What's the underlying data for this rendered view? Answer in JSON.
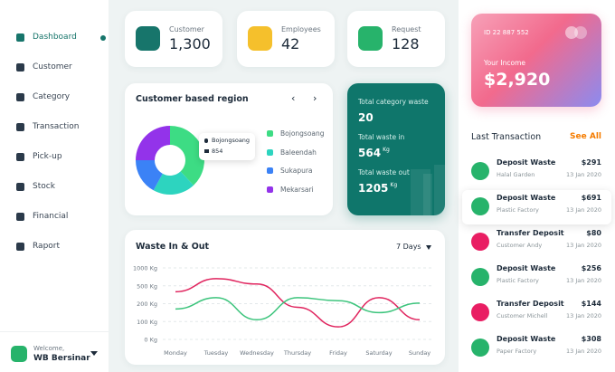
{
  "sidebar": {
    "nav": [
      "Dashboard",
      "Customer",
      "Category",
      "Transaction",
      "Pick-up",
      "Stock",
      "Financial",
      "Raport"
    ],
    "active": 0,
    "user": {
      "greeting": "Welcome,",
      "name": "WB Bersinar"
    }
  },
  "stats": [
    {
      "label": "Customer",
      "value": "1,300",
      "color": "#17756b"
    },
    {
      "label": "Employees",
      "value": "42",
      "color": "#f5c02c"
    },
    {
      "label": "Request",
      "value": "128",
      "color": "#27b36b"
    }
  ],
  "region": {
    "title": "Customer based region",
    "labels": [
      "Bojongsoang",
      "Baleendah",
      "Sukapura",
      "Mekarsari"
    ],
    "colors": [
      "#3ddc84",
      "#2dd4bf",
      "#3b82f6",
      "#9333ea"
    ],
    "values": [
      38,
      20,
      17,
      25
    ],
    "tooltip": {
      "label": "Bojongsoang",
      "value": "854"
    }
  },
  "waste_summary": {
    "category_label": "Total category waste",
    "category_value": "20",
    "in_label": "Total waste in",
    "in_value": "564",
    "out_label": "Total waste out",
    "out_value": "1205",
    "unit": "Kg"
  },
  "waste_chart": {
    "title": "Waste In & Out",
    "period": "7 Days",
    "x": [
      "Monday",
      "Tuesday",
      "Wednesday",
      "Thursday",
      "Friday",
      "Saturday",
      "Sunday"
    ],
    "ylim": [
      0,
      1000
    ],
    "yticks": [
      {
        "value": 0,
        "label": "0 Kg"
      },
      {
        "value": 100,
        "label": "100 Kg"
      },
      {
        "value": 200,
        "label": "200 Kg"
      },
      {
        "value": 500,
        "label": "500 Kg"
      },
      {
        "value": 1000,
        "label": "1000 Kg"
      }
    ],
    "grid": true,
    "series": [
      {
        "color": "#e0245e",
        "values": [
          400,
          700,
          550,
          180,
          70,
          300,
          110
        ]
      },
      {
        "color": "#3cc47c",
        "values": [
          170,
          300,
          110,
          300,
          250,
          150,
          210
        ]
      }
    ]
  },
  "income": {
    "id": "ID 22 887 552",
    "label": "Your Income",
    "value": "$2,920"
  },
  "transactions": {
    "title": "Last Transaction",
    "see_all": "See All",
    "highlight": 1,
    "rows": [
      {
        "title": "Deposit Waste",
        "party": "Halal Garden",
        "amount": "$291",
        "date": "13 Jan 2020",
        "color": "#27b36b"
      },
      {
        "title": "Deposit Waste",
        "party": "Plastic Factory",
        "amount": "$691",
        "date": "13 Jan 2020",
        "color": "#27b36b"
      },
      {
        "title": "Transfer Deposit",
        "party": "Customer Andy",
        "amount": "$80",
        "date": "13 Jan 2020",
        "color": "#e91e63"
      },
      {
        "title": "Deposit Waste",
        "party": "Plastic Factory",
        "amount": "$256",
        "date": "13 Jan 2020",
        "color": "#27b36b"
      },
      {
        "title": "Transfer Deposit",
        "party": "Customer Michell",
        "amount": "$144",
        "date": "13 Jan 2020",
        "color": "#e91e63"
      },
      {
        "title": "Deposit Waste",
        "party": "Paper Factory",
        "amount": "$308",
        "date": "13 Jan 2020",
        "color": "#27b36b"
      }
    ]
  }
}
